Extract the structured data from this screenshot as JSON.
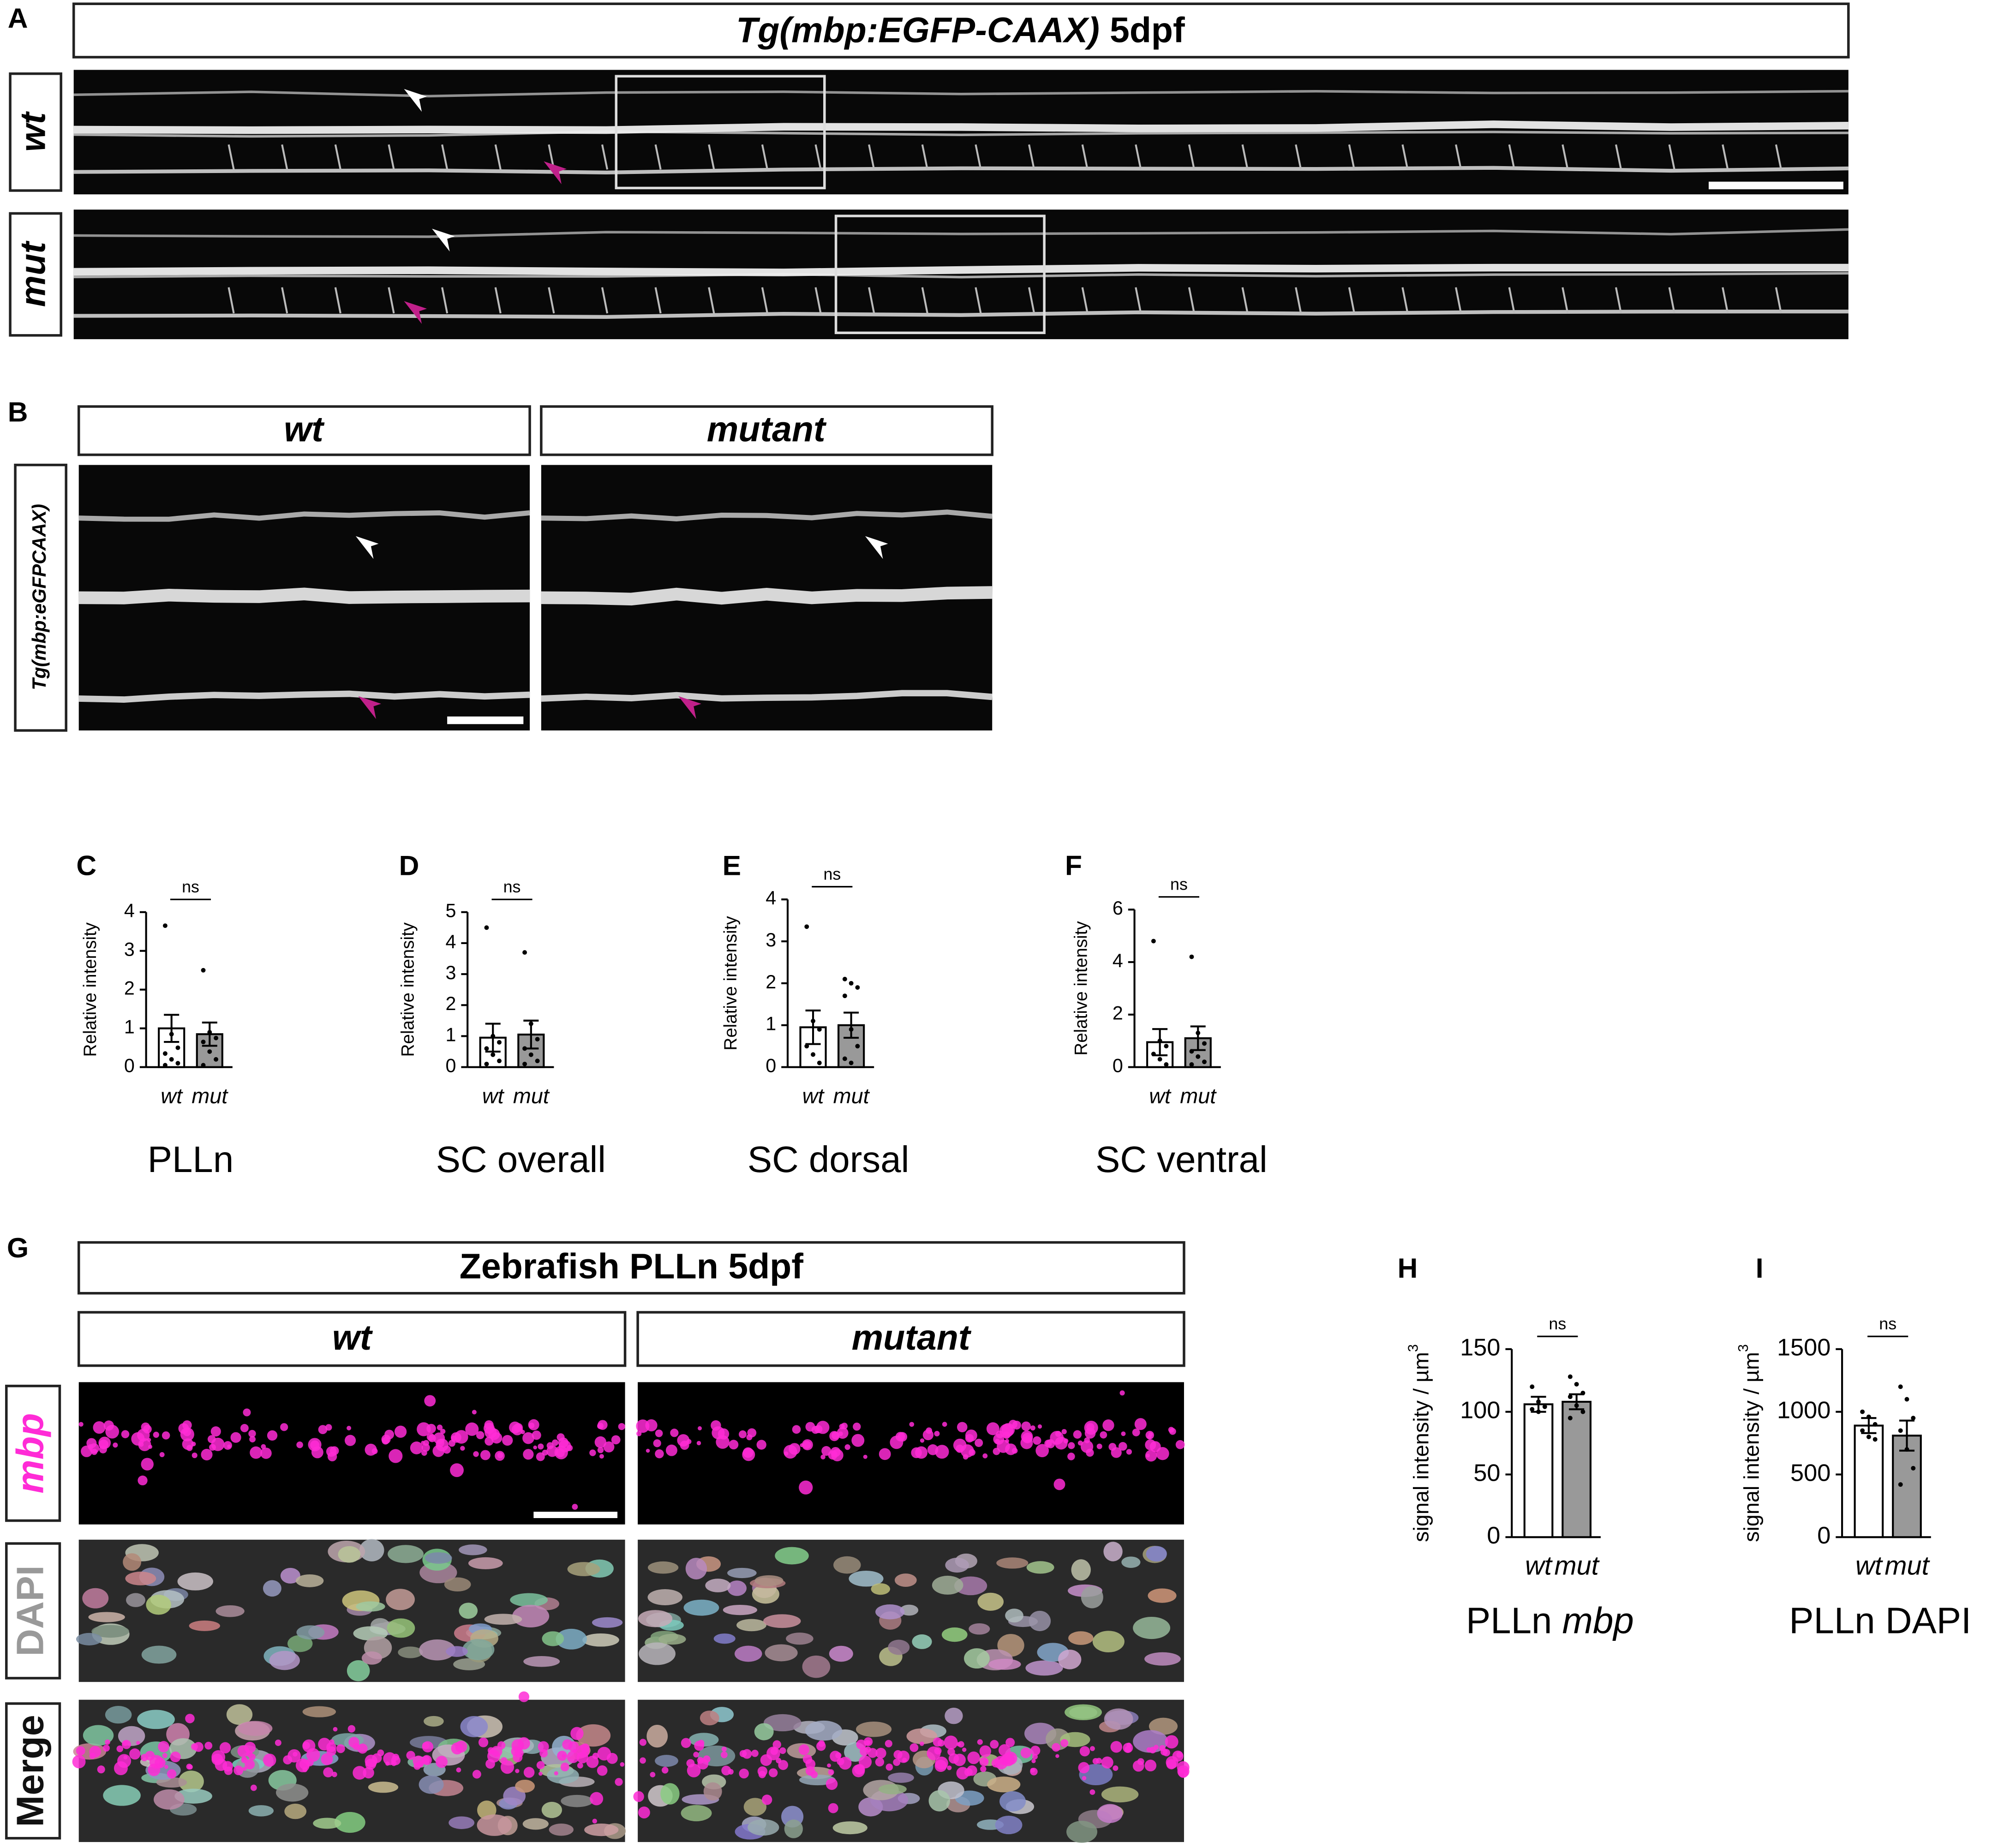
{
  "panels": {
    "A": {
      "letter": "A",
      "header_italic": "Tg(mbp:EGFP-CAAX)",
      "header_rest": "5dpf",
      "rows": [
        "wt",
        "mut"
      ]
    },
    "B": {
      "letter": "B",
      "columns": [
        "wt",
        "mutant"
      ],
      "side_label": "Tg(mbp:eGFPCAAX)"
    },
    "G": {
      "letter": "G",
      "header": "Zebrafish PLLn 5dpf",
      "columns": [
        "wt",
        "mutant"
      ],
      "rows": [
        "mbp",
        "DAPI",
        "Merge"
      ]
    }
  },
  "chart_data": [
    {
      "type": "bar",
      "panel": "C",
      "title": "PLLn",
      "y_label": "Relative intensity",
      "annotation": "ns",
      "categories": [
        "wt",
        "mut"
      ],
      "values": [
        1.0,
        0.85
      ],
      "errors": [
        0.35,
        0.3
      ],
      "colors": [
        "#ffffff",
        "#999999"
      ],
      "points": [
        [
          3.65,
          0.85,
          0.5,
          0.35,
          0.2,
          0.1,
          0.05
        ],
        [
          2.5,
          0.9,
          0.75,
          0.65,
          0.4,
          0.2,
          0.05
        ]
      ],
      "ylim": [
        0,
        4
      ],
      "yticks": [
        0,
        1,
        2,
        3,
        4
      ]
    },
    {
      "type": "bar",
      "panel": "D",
      "title": "SC overall",
      "y_label": "Relative intensity",
      "annotation": "ns",
      "categories": [
        "wt",
        "mut"
      ],
      "values": [
        0.95,
        1.05
      ],
      "errors": [
        0.45,
        0.45
      ],
      "colors": [
        "#ffffff",
        "#999999"
      ],
      "points": [
        [
          4.5,
          1.0,
          0.8,
          0.6,
          0.4,
          0.2,
          0.1
        ],
        [
          3.7,
          1.4,
          0.9,
          0.6,
          0.4,
          0.2,
          0.1
        ]
      ],
      "ylim": [
        0,
        5
      ],
      "yticks": [
        0,
        1,
        2,
        3,
        4,
        5
      ]
    },
    {
      "type": "bar",
      "panel": "E",
      "title": "SC dorsal",
      "y_label": "Relative intensity",
      "annotation": "ns",
      "categories": [
        "wt",
        "mut"
      ],
      "values": [
        0.95,
        1.0
      ],
      "errors": [
        0.4,
        0.3
      ],
      "colors": [
        "#ffffff",
        "#999999"
      ],
      "points": [
        [
          3.35,
          1.1,
          0.9,
          0.5,
          0.3,
          0.1
        ],
        [
          2.1,
          2.0,
          1.9,
          1.7,
          0.9,
          0.5,
          0.2,
          0.1
        ]
      ],
      "ylim": [
        0,
        4
      ],
      "yticks": [
        0,
        1,
        2,
        3,
        4
      ]
    },
    {
      "type": "bar",
      "panel": "F",
      "title": "SC ventral",
      "y_label": "Relative intensity",
      "annotation": "ns",
      "categories": [
        "wt",
        "mut"
      ],
      "values": [
        0.95,
        1.1
      ],
      "errors": [
        0.5,
        0.45
      ],
      "colors": [
        "#ffffff",
        "#999999"
      ],
      "points": [
        [
          4.8,
          1.0,
          0.8,
          0.5,
          0.3,
          0.1
        ],
        [
          4.2,
          1.3,
          0.9,
          0.6,
          0.4,
          0.2,
          0.1
        ]
      ],
      "ylim": [
        0,
        6
      ],
      "yticks": [
        0,
        2,
        4,
        6
      ]
    },
    {
      "type": "bar",
      "panel": "H",
      "title": "PLLn",
      "title_italic": "mbp",
      "y_label": "signal intensity / µm",
      "y_label_sup": "3",
      "annotation": "ns",
      "categories": [
        "wt",
        "mut"
      ],
      "values": [
        106,
        108
      ],
      "errors": [
        6,
        6
      ],
      "colors": [
        "#ffffff",
        "#999999"
      ],
      "points": [
        [
          120,
          108,
          104,
          102,
          100
        ],
        [
          128,
          122,
          115,
          112,
          105,
          100,
          95
        ]
      ],
      "ylim": [
        0,
        150
      ],
      "yticks": [
        0,
        50,
        100,
        150
      ]
    },
    {
      "type": "bar",
      "panel": "I",
      "title": "PLLn DAPI",
      "y_label": "signal intensity / µm",
      "y_label_sup": "3",
      "annotation": "ns",
      "categories": [
        "wt",
        "mut"
      ],
      "values": [
        890,
        810
      ],
      "errors": [
        60,
        120
      ],
      "colors": [
        "#ffffff",
        "#999999"
      ],
      "points": [
        [
          1000,
          960,
          900,
          850,
          800,
          780
        ],
        [
          1200,
          1100,
          950,
          850,
          700,
          550,
          420
        ]
      ],
      "ylim": [
        0,
        1500
      ],
      "yticks": [
        0,
        500,
        1000,
        1500
      ]
    }
  ]
}
